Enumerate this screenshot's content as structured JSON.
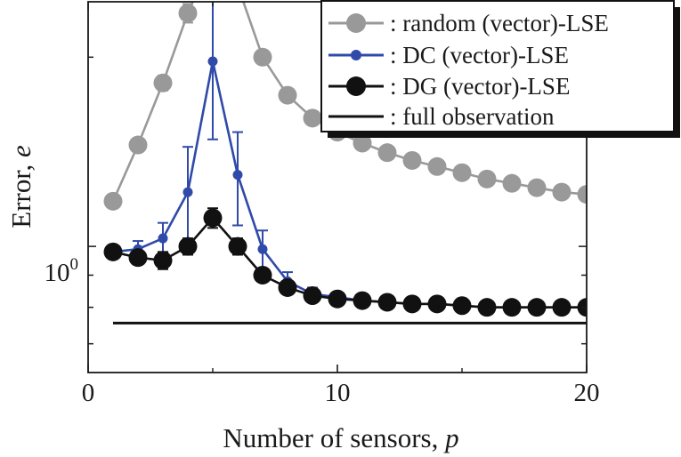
{
  "chart_data": {
    "type": "line",
    "xlabel": "Number of sensors, ",
    "xlabel_var": "p",
    "ylabel": "Error, ",
    "ylabel_var": "e",
    "xlim": [
      0,
      20
    ],
    "ylim": [
      0.63,
      2.45
    ],
    "yscale": "log",
    "x_ticks": [
      "0",
      "10",
      "20"
    ],
    "y_tick_base": "10",
    "y_tick_exp": "0",
    "legend_position": "top-right",
    "series": [
      {
        "name": ": random (vector)-LSE",
        "color": "#999999",
        "marker": "large-circle",
        "x": [
          1,
          2,
          3,
          4,
          5,
          6,
          7,
          8,
          9,
          10,
          11,
          12,
          13,
          14,
          15,
          16,
          17,
          18,
          19,
          20
        ],
        "y": [
          1.18,
          1.45,
          1.82,
          2.35,
          2.9,
          2.6,
          2.0,
          1.74,
          1.6,
          1.52,
          1.46,
          1.41,
          1.37,
          1.34,
          1.31,
          1.28,
          1.26,
          1.24,
          1.22,
          1.21
        ],
        "err": [
          0.02,
          0.03,
          0.05,
          0.08,
          0,
          0,
          0.05,
          0.04,
          0.03,
          0.03,
          0.02,
          0.02,
          0.02,
          0.02,
          0.02,
          0.02,
          0.02,
          0.02,
          0.02,
          0.02
        ]
      },
      {
        "name": ": DC (vector)-LSE",
        "color": "#2f4aa8",
        "marker": "small-circle",
        "x": [
          1,
          2,
          3,
          4,
          5,
          6,
          7,
          8,
          9,
          10,
          11,
          12,
          13,
          14,
          15,
          16,
          17,
          18,
          19,
          20
        ],
        "y": [
          0.98,
          0.99,
          1.03,
          1.22,
          1.97,
          1.3,
          0.99,
          0.88,
          0.84,
          0.83,
          0.82,
          0.815,
          0.81,
          0.81,
          0.805,
          0.8,
          0.8,
          0.8,
          0.8,
          0.8
        ],
        "err": [
          0.02,
          0.03,
          0.06,
          0.22,
          0.49,
          0.22,
          0.07,
          0.03,
          0.02,
          0.01,
          0.01,
          0.01,
          0.01,
          0.01,
          0.01,
          0.01,
          0.01,
          0.01,
          0.01,
          0.01
        ]
      },
      {
        "name": ": DG (vector)-LSE",
        "color": "#111111",
        "marker": "large-circle",
        "x": [
          1,
          2,
          3,
          4,
          5,
          6,
          7,
          8,
          9,
          10,
          11,
          12,
          13,
          14,
          15,
          16,
          17,
          18,
          19,
          20
        ],
        "y": [
          0.98,
          0.96,
          0.95,
          1.0,
          1.11,
          1.0,
          0.9,
          0.86,
          0.835,
          0.825,
          0.82,
          0.815,
          0.81,
          0.81,
          0.805,
          0.8,
          0.8,
          0.8,
          0.8,
          0.8
        ],
        "err": [
          0.01,
          0.02,
          0.03,
          0.03,
          0.04,
          0.03,
          0.02,
          0.01,
          0.01,
          0.01,
          0.01,
          0.01,
          0.01,
          0.01,
          0.01,
          0.01,
          0.01,
          0.01,
          0.01,
          0.01
        ]
      },
      {
        "name": ": full observation",
        "color": "#111111",
        "marker": "none",
        "x": [
          1,
          20
        ],
        "y": [
          0.755,
          0.755
        ]
      }
    ]
  }
}
